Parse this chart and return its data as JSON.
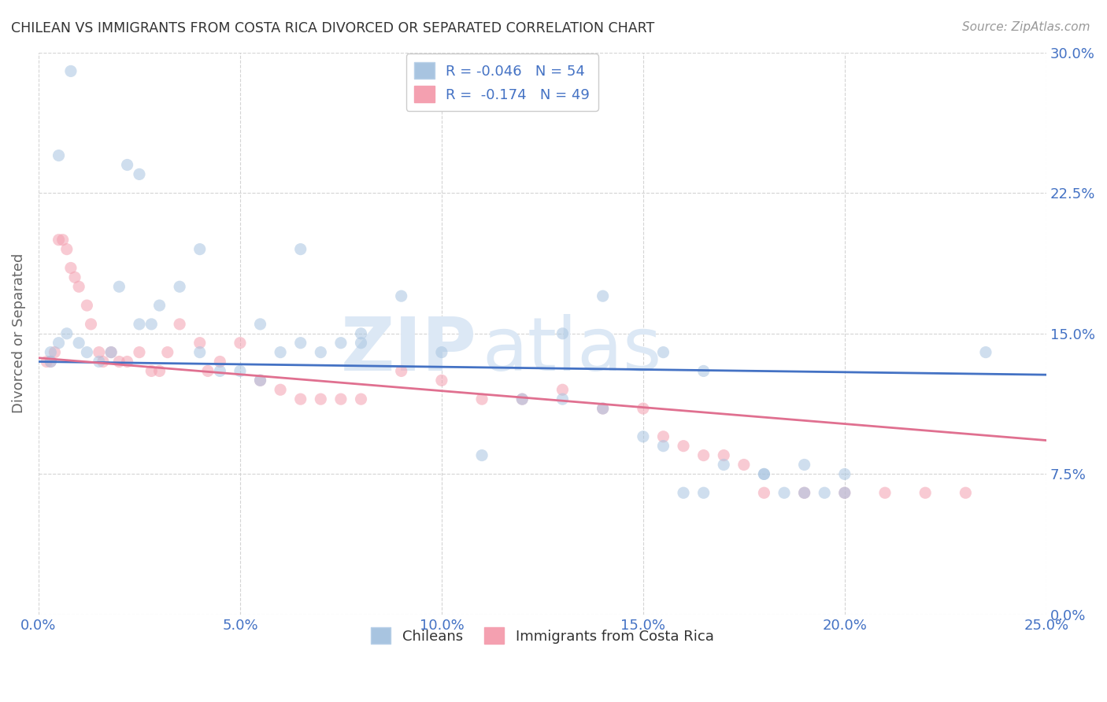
{
  "title": "CHILEAN VS IMMIGRANTS FROM COSTA RICA DIVORCED OR SEPARATED CORRELATION CHART",
  "source": "Source: ZipAtlas.com",
  "xlabel_ticks": [
    "0.0%",
    "5.0%",
    "10.0%",
    "15.0%",
    "20.0%",
    "25.0%"
  ],
  "xlabel_vals": [
    0.0,
    0.05,
    0.1,
    0.15,
    0.2,
    0.25
  ],
  "ylabel_ticks": [
    "0.0%",
    "7.5%",
    "15.0%",
    "22.5%",
    "30.0%"
  ],
  "ylabel_vals": [
    0.0,
    0.075,
    0.15,
    0.225,
    0.3
  ],
  "xlim": [
    0.0,
    0.25
  ],
  "ylim": [
    0.0,
    0.3
  ],
  "r_blue": -0.046,
  "n_blue": 54,
  "r_pink": -0.174,
  "n_pink": 49,
  "ylabel": "Divorced or Separated",
  "legend_label_blue": "Chileans",
  "legend_label_pink": "Immigrants from Costa Rica",
  "scatter_blue_x": [
    0.008,
    0.022,
    0.005,
    0.003,
    0.003,
    0.005,
    0.007,
    0.01,
    0.012,
    0.015,
    0.018,
    0.02,
    0.025,
    0.028,
    0.03,
    0.035,
    0.04,
    0.045,
    0.05,
    0.055,
    0.06,
    0.065,
    0.07,
    0.075,
    0.08,
    0.09,
    0.1,
    0.11,
    0.12,
    0.13,
    0.14,
    0.15,
    0.155,
    0.16,
    0.165,
    0.17,
    0.18,
    0.185,
    0.19,
    0.195,
    0.2,
    0.235,
    0.025,
    0.04,
    0.055,
    0.065,
    0.08,
    0.13,
    0.14,
    0.155,
    0.165,
    0.18,
    0.19,
    0.2
  ],
  "scatter_blue_y": [
    0.29,
    0.24,
    0.245,
    0.135,
    0.14,
    0.145,
    0.15,
    0.145,
    0.14,
    0.135,
    0.14,
    0.175,
    0.155,
    0.155,
    0.165,
    0.175,
    0.14,
    0.13,
    0.13,
    0.125,
    0.14,
    0.145,
    0.14,
    0.145,
    0.15,
    0.17,
    0.14,
    0.085,
    0.115,
    0.115,
    0.11,
    0.095,
    0.09,
    0.065,
    0.065,
    0.08,
    0.075,
    0.065,
    0.065,
    0.065,
    0.065,
    0.14,
    0.235,
    0.195,
    0.155,
    0.195,
    0.145,
    0.15,
    0.17,
    0.14,
    0.13,
    0.075,
    0.08,
    0.075
  ],
  "scatter_pink_x": [
    0.002,
    0.003,
    0.004,
    0.005,
    0.006,
    0.007,
    0.008,
    0.009,
    0.01,
    0.012,
    0.013,
    0.015,
    0.016,
    0.018,
    0.02,
    0.022,
    0.025,
    0.028,
    0.03,
    0.032,
    0.035,
    0.04,
    0.042,
    0.045,
    0.05,
    0.055,
    0.06,
    0.065,
    0.07,
    0.075,
    0.08,
    0.09,
    0.1,
    0.11,
    0.12,
    0.13,
    0.14,
    0.15,
    0.155,
    0.16,
    0.165,
    0.17,
    0.175,
    0.18,
    0.19,
    0.2,
    0.21,
    0.22,
    0.23
  ],
  "scatter_pink_y": [
    0.135,
    0.135,
    0.14,
    0.2,
    0.2,
    0.195,
    0.185,
    0.18,
    0.175,
    0.165,
    0.155,
    0.14,
    0.135,
    0.14,
    0.135,
    0.135,
    0.14,
    0.13,
    0.13,
    0.14,
    0.155,
    0.145,
    0.13,
    0.135,
    0.145,
    0.125,
    0.12,
    0.115,
    0.115,
    0.115,
    0.115,
    0.13,
    0.125,
    0.115,
    0.115,
    0.12,
    0.11,
    0.11,
    0.095,
    0.09,
    0.085,
    0.085,
    0.08,
    0.065,
    0.065,
    0.065,
    0.065,
    0.065,
    0.065
  ],
  "blue_line_y0": 0.135,
  "blue_line_y1": 0.128,
  "pink_line_y0": 0.137,
  "pink_line_y1": 0.093,
  "blue_color": "#a8c4e0",
  "pink_color": "#f4a0b0",
  "blue_line_color": "#4472c4",
  "pink_line_color": "#e07090",
  "background_color": "#ffffff",
  "grid_color": "#d0d0d0",
  "title_color": "#333333",
  "axis_color": "#4472c4",
  "watermark_color": "#dce8f5",
  "marker_size": 120,
  "marker_alpha": 0.55
}
